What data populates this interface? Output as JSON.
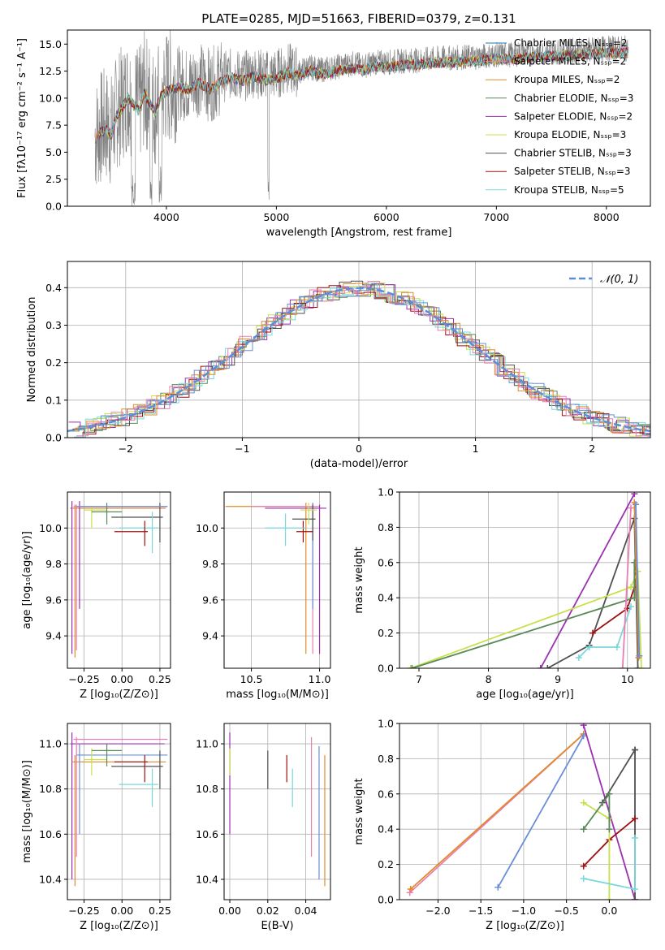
{
  "chart_data": [
    {
      "id": "spectrum",
      "type": "line",
      "title": "PLATE=0285, MJD=51663, FIBERID=0379, z=0.131",
      "xlabel": "wavelength [Angstrom, rest frame]",
      "ylabel": "Flux [fλ10⁻¹⁷ erg cm⁻² s⁻¹ A⁻¹]",
      "xlim": [
        3100,
        8400
      ],
      "ylim": [
        0,
        16.3
      ],
      "xticks": [
        4000,
        5000,
        6000,
        7000,
        8000
      ],
      "yticks": [
        0.0,
        2.5,
        5.0,
        7.5,
        10.0,
        12.5,
        15.0
      ],
      "grid": false,
      "legend_loc": "upper right",
      "observed": {
        "color": "#808080",
        "x": [
          3350,
          3400,
          3450,
          3500,
          3550,
          3600,
          3650,
          3700,
          3750,
          3800,
          3850,
          3900,
          3950,
          4000,
          4100,
          4200,
          4300,
          4400,
          4500,
          4600,
          4700,
          4800,
          4900,
          5000,
          5100,
          5200,
          5300,
          5400,
          5500,
          5600,
          5700,
          5800,
          5900,
          6000,
          6100,
          6200,
          6300,
          6400,
          6500,
          6600,
          6700,
          6800,
          6900,
          7000,
          7100,
          7200,
          7300,
          7400,
          7500,
          7600,
          7700,
          7800,
          7900,
          8000,
          8100,
          8200
        ],
        "y": [
          6.5,
          7.2,
          7.5,
          7.0,
          8.8,
          9.5,
          10.5,
          9.8,
          9.2,
          10.8,
          10.0,
          9.0,
          10.6,
          11.0,
          11.4,
          11.2,
          11.8,
          11.2,
          11.9,
          12.3,
          12.0,
          12.4,
          12.1,
          12.2,
          12.8,
          12.4,
          12.9,
          12.6,
          12.8,
          13.0,
          13.2,
          13.0,
          13.3,
          13.3,
          13.4,
          13.5,
          13.5,
          13.6,
          13.7,
          13.7,
          13.8,
          13.8,
          13.9,
          14.0,
          14.0,
          14.1,
          14.2,
          14.2,
          14.3,
          14.3,
          14.4,
          14.4,
          14.5,
          14.6,
          14.6,
          14.6
        ]
      },
      "series": [
        {
          "name": "Chabrier MILES, Nₛₛₚ=2",
          "color": "#1f77b4"
        },
        {
          "name": "Salpeter MILES, Nₛₛₚ=2",
          "color": "#ff7f7f"
        },
        {
          "name": "Kroupa MILES, Nₛₛₚ=2",
          "color": "#e08a2b"
        },
        {
          "name": "Chabrier ELODIE, Nₛₛₚ=3",
          "color": "#5a8a5a"
        },
        {
          "name": "Salpeter ELODIE, Nₛₛₚ=2",
          "color": "#9b30b0"
        },
        {
          "name": "Kroupa ELODIE, Nₛₛₚ=3",
          "color": "#c8e04a"
        },
        {
          "name": "Chabrier STELIB, Nₛₛₚ=3",
          "color": "#505050"
        },
        {
          "name": "Salpeter STELIB, Nₛₛₚ=3",
          "color": "#a01010"
        },
        {
          "name": "Kroupa STELIB, Nₛₛₚ=5",
          "color": "#7ad8dc"
        }
      ]
    },
    {
      "id": "residuals",
      "type": "line",
      "xlabel": "(data-model)/error",
      "ylabel": "Normed distribution",
      "xlim": [
        -2.5,
        2.5
      ],
      "ylim": [
        0,
        0.47
      ],
      "xticks": [
        -2,
        -1,
        0,
        1,
        2
      ],
      "yticks": [
        0.0,
        0.1,
        0.2,
        0.3,
        0.4
      ],
      "grid": true,
      "legend": "𝒩(0, 1)",
      "legend_loc": "upper right",
      "normal_curve_color": "#5b8ed6",
      "histogram_colors": [
        "#5a8a5a",
        "#9b30b0",
        "#c8e04a",
        "#505050",
        "#a01010",
        "#7ad8dc",
        "#e08a2b",
        "#e87fb0",
        "#6a8fd8"
      ]
    },
    {
      "id": "age-vs-Z",
      "type": "scatter",
      "xlabel": "Z [log₁₀(Z/Z⊙)]",
      "ylabel": "age  [log₁₀(age/yr)]",
      "xlim": [
        -0.36,
        0.32
      ],
      "ylim": [
        9.22,
        10.2
      ],
      "xticks": [
        -0.25,
        0.0,
        0.25
      ],
      "xticklabels": [
        "−0.25",
        "0.00",
        "0.25"
      ],
      "yticks": [
        9.4,
        9.6,
        9.8,
        10.0
      ],
      "grid": true
    },
    {
      "id": "age-vs-mass",
      "type": "scatter",
      "xlabel": "mass [log₁₀(M/M⊙)]",
      "xlim": [
        10.3,
        11.08
      ],
      "ylim": [
        9.22,
        10.2
      ],
      "xticks": [
        10.5,
        11.0
      ],
      "yticks": [
        9.4,
        9.6,
        9.8,
        10.0
      ],
      "grid": true
    },
    {
      "id": "massweight-vs-age",
      "type": "line",
      "xlabel": "age  [log₁₀(age/yr)]",
      "ylabel": "mass weight",
      "xlim": [
        6.72,
        10.33
      ],
      "ylim": [
        0.0,
        1.0
      ],
      "xticks": [
        7,
        8,
        9,
        10
      ],
      "yticks": [
        0.0,
        0.2,
        0.4,
        0.6,
        0.8,
        1.0
      ],
      "grid": true,
      "series": [
        {
          "color": "#9b30b0",
          "x": [
            8.75,
            10.1
          ],
          "y": [
            0.0,
            0.99
          ]
        },
        {
          "color": "#505050",
          "x": [
            8.85,
            9.45,
            10.1,
            10.15
          ],
          "y": [
            0.0,
            0.13,
            0.85,
            0.0
          ]
        },
        {
          "color": "#a01010",
          "x": [
            9.5,
            10.0,
            10.1
          ],
          "y": [
            0.2,
            0.34,
            0.46
          ]
        },
        {
          "color": "#c8e04a",
          "x": [
            6.88,
            10.05,
            10.15,
            10.2
          ],
          "y": [
            0.0,
            0.46,
            0.55,
            0.0
          ]
        },
        {
          "color": "#5a8a5a",
          "x": [
            6.9,
            10.1,
            10.1
          ],
          "y": [
            0.0,
            0.4,
            0.6
          ]
        },
        {
          "color": "#7ad8dc",
          "x": [
            9.3,
            9.45,
            9.85,
            10.05
          ],
          "y": [
            0.06,
            0.12,
            0.12,
            0.35
          ]
        },
        {
          "color": "#e87fb0",
          "x": [
            9.93,
            10.05
          ],
          "y": [
            0.0,
            0.91
          ]
        },
        {
          "color": "#e08a2b",
          "x": [
            10.1,
            10.16
          ],
          "y": [
            0.94,
            0.06
          ]
        },
        {
          "color": "#6a8fd8",
          "x": [
            10.12,
            10.17
          ],
          "y": [
            0.93,
            0.07
          ]
        }
      ]
    },
    {
      "id": "mass-vs-Z",
      "type": "scatter",
      "xlabel": "Z [log₁₀(Z/Z⊙)]",
      "ylabel": "mass [log₁₀(M/M⊙)]",
      "xlim": [
        -0.36,
        0.32
      ],
      "ylim": [
        10.31,
        11.09
      ],
      "xticks": [
        -0.25,
        0.0,
        0.25
      ],
      "xticklabels": [
        "−0.25",
        "0.00",
        "0.25"
      ],
      "yticks": [
        10.4,
        10.6,
        10.8,
        11.0
      ],
      "grid": true
    },
    {
      "id": "mass-vs-ebv",
      "type": "scatter",
      "xlabel": "E(B-V)",
      "xlim": [
        -0.003,
        0.053
      ],
      "ylim": [
        10.31,
        11.09
      ],
      "xticks": [
        0.0,
        0.02,
        0.04
      ],
      "xticklabels": [
        "0.00",
        "0.02",
        "0.04"
      ],
      "yticks": [
        10.4,
        10.6,
        10.8,
        11.0
      ],
      "grid": true,
      "points": [
        {
          "color": "#9b30b0",
          "x": 0.0,
          "y": [
            10.6,
            11.05
          ]
        },
        {
          "color": "#c8e04a",
          "x": 0.0,
          "y": [
            10.86,
            10.98
          ]
        },
        {
          "color": "#505050",
          "x": 0.02,
          "y": [
            10.8,
            10.97
          ]
        },
        {
          "color": "#a01010",
          "x": 0.03,
          "y": [
            10.83,
            10.95
          ]
        },
        {
          "color": "#7ad8dc",
          "x": 0.033,
          "y": [
            10.72,
            10.89
          ]
        },
        {
          "color": "#e87fb0",
          "x": 0.043,
          "y": [
            10.5,
            11.03
          ]
        },
        {
          "color": "#6a8fd8",
          "x": 0.047,
          "y": [
            10.4,
            10.99
          ]
        },
        {
          "color": "#e08a2b",
          "x": 0.05,
          "y": [
            10.37,
            10.95
          ]
        }
      ]
    },
    {
      "id": "massweight-vs-Z",
      "type": "line",
      "xlabel": "Z [log₁₀(Z/Z⊙)]",
      "ylabel": "mass weight",
      "xlim": [
        -2.45,
        0.48
      ],
      "ylim": [
        0.0,
        1.0
      ],
      "xticks": [
        -2.0,
        -1.5,
        -1.0,
        -0.5,
        0.0
      ],
      "xticklabels": [
        "−2.0",
        "−1.5",
        "−1.0",
        "−0.5",
        "0.0"
      ],
      "yticks": [
        0.0,
        0.2,
        0.4,
        0.6,
        0.8,
        1.0
      ],
      "grid": true,
      "series": [
        {
          "color": "#e87fb0",
          "x": [
            -2.33,
            -0.3
          ],
          "y": [
            0.04,
            0.94
          ]
        },
        {
          "color": "#e08a2b",
          "x": [
            -2.32,
            -0.3
          ],
          "y": [
            0.06,
            0.94
          ]
        },
        {
          "color": "#6a8fd8",
          "x": [
            -1.3,
            -0.3
          ],
          "y": [
            0.07,
            0.93
          ]
        },
        {
          "color": "#9b30b0",
          "x": [
            -0.3,
            0.3
          ],
          "y": [
            0.99,
            0.0
          ]
        },
        {
          "color": "#505050",
          "x": [
            0.3,
            0.3,
            -0.08,
            0.3
          ],
          "y": [
            0.0,
            0.85,
            0.55,
            0.85
          ]
        },
        {
          "color": "#a01010",
          "x": [
            -0.3,
            0.0,
            0.3
          ],
          "y": [
            0.19,
            0.34,
            0.46
          ]
        },
        {
          "color": "#c8e04a",
          "x": [
            -0.3,
            0.0,
            0.0
          ],
          "y": [
            0.55,
            0.46,
            0.0
          ]
        },
        {
          "color": "#5a8a5a",
          "x": [
            -0.3,
            0.0,
            0.0
          ],
          "y": [
            0.4,
            0.6,
            0.4
          ]
        },
        {
          "color": "#7ad8dc",
          "x": [
            -0.3,
            0.3,
            0.3
          ],
          "y": [
            0.12,
            0.06,
            0.35
          ]
        }
      ]
    }
  ]
}
